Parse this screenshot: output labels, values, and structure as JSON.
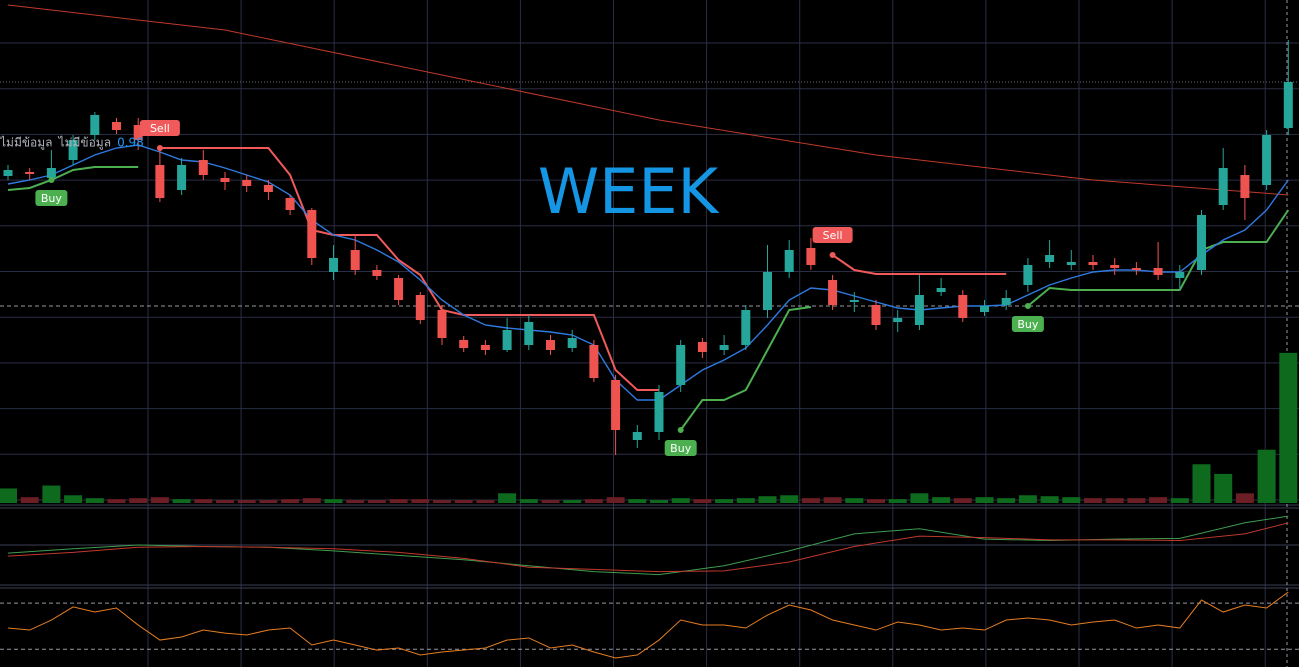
{
  "chart_data": {
    "type": "candlestick",
    "title": "WEEK",
    "status": [
      "ไม่มีข้อมูล",
      "ไม่มีข้อมูล",
      "0.98"
    ],
    "status_colors": [
      "#b2b5be",
      "#b2b5be",
      "#2196f3"
    ],
    "up_color": "#26a69a",
    "down_color": "#ef5350",
    "grid": true,
    "ylim": [
      0,
      100
    ],
    "open": [
      64.8,
      65.6,
      64.4,
      68,
      73,
      75.6,
      75,
      67,
      62,
      68,
      64.4,
      64,
      63,
      60.4,
      58,
      45.6,
      50,
      46,
      44.4,
      41,
      38,
      32,
      31,
      30,
      31,
      32,
      30.4,
      31,
      24,
      12,
      13.6,
      23,
      31.6,
      30,
      31,
      38,
      45.6,
      50.4,
      44,
      39.6,
      39,
      35.6,
      35,
      41.6,
      41,
      37.6,
      39,
      43,
      47.6,
      47,
      47.6,
      47,
      46.4,
      46.4,
      44.4,
      46,
      59,
      65,
      63,
      74.4
    ],
    "high": [
      67,
      66.4,
      70,
      73,
      77.6,
      76.4,
      76.4,
      70.4,
      68.4,
      70,
      65.6,
      65,
      64,
      61,
      58.4,
      51,
      53,
      47,
      45,
      41.6,
      39,
      32.8,
      32,
      36.4,
      37,
      33,
      34,
      32,
      25,
      15,
      23,
      32,
      32.4,
      33,
      39,
      51,
      52,
      52.4,
      45,
      41.6,
      40,
      38,
      45,
      44.4,
      42,
      40,
      42,
      48.4,
      52,
      50,
      49,
      48.4,
      47.6,
      51.6,
      47,
      58,
      70.4,
      67,
      74,
      92
    ],
    "low": [
      64,
      64,
      63.6,
      67,
      72,
      73.2,
      70,
      59.6,
      61,
      64,
      62,
      61.6,
      60,
      57,
      47,
      44,
      45,
      44,
      39,
      35.2,
      31,
      29.6,
      29,
      29.6,
      30,
      29,
      29.6,
      23.6,
      9,
      10.4,
      12,
      21.6,
      28.4,
      29,
      30,
      36.4,
      44.4,
      46,
      38,
      37.6,
      34,
      33.6,
      34,
      40.8,
      35.6,
      36.8,
      38,
      41.6,
      46.4,
      46,
      46,
      45,
      45,
      44,
      42,
      45,
      58,
      56,
      62,
      73
    ],
    "close": [
      66,
      65.2,
      66.4,
      72,
      77,
      74,
      72,
      60.4,
      67,
      65,
      63.6,
      62.8,
      61.6,
      58,
      48.4,
      48.4,
      46,
      44.8,
      40,
      36,
      32.4,
      30.4,
      30,
      34,
      35.6,
      30,
      32.4,
      24.4,
      14,
      13.6,
      21.6,
      31,
      29.6,
      31,
      38,
      45.6,
      50,
      47,
      39,
      40,
      35,
      36.4,
      41,
      42.4,
      36.4,
      38.8,
      40.4,
      47,
      49,
      47.6,
      47,
      46.4,
      46,
      45,
      45.6,
      57,
      66.4,
      60.4,
      73,
      83.6
    ],
    "volume": {
      "ylim": [
        0,
        160
      ],
      "values": [
        15,
        6,
        18,
        8,
        5,
        4,
        5,
        6,
        4,
        4,
        3,
        3,
        3,
        4,
        5,
        4,
        3,
        3,
        4,
        4,
        3,
        3,
        3,
        10,
        4,
        3,
        3,
        4,
        6,
        4,
        3,
        5,
        4,
        4,
        5,
        7,
        8,
        5,
        6,
        5,
        4,
        4,
        10,
        6,
        5,
        6,
        5,
        8,
        7,
        6,
        5,
        5,
        5,
        6,
        5,
        40,
        30,
        10,
        55,
        155
      ]
    },
    "trend_upper": {
      "color": "#f05a5a",
      "values": [
        null,
        null,
        null,
        null,
        null,
        null,
        null,
        70.4,
        70.4,
        70.4,
        70.4,
        70.4,
        70.4,
        65,
        54,
        53,
        53,
        53,
        48,
        45,
        38,
        37,
        37,
        37,
        37,
        37,
        37,
        37,
        26,
        22,
        22,
        null,
        null,
        null,
        null,
        null,
        null,
        null,
        49,
        46,
        45.2,
        45.2,
        45.2,
        45.2,
        45.2,
        45.2,
        45.2,
        null,
        null,
        null,
        null,
        null,
        null,
        null,
        null,
        null,
        null,
        null,
        null,
        null
      ]
    },
    "trend_lower": {
      "color": "#4caf50",
      "values": [
        62,
        62.4,
        64,
        66,
        66.6,
        66.6,
        66.6,
        null,
        null,
        null,
        null,
        null,
        null,
        null,
        null,
        null,
        null,
        null,
        null,
        null,
        null,
        null,
        null,
        null,
        null,
        null,
        null,
        null,
        null,
        null,
        null,
        14,
        20,
        20,
        22,
        30,
        38,
        38.6,
        null,
        null,
        null,
        null,
        null,
        null,
        null,
        null,
        null,
        38.8,
        42.4,
        42,
        42,
        42,
        42,
        42,
        42,
        50,
        51.6,
        51.6,
        51.6,
        58
      ]
    },
    "ma": {
      "color": "#2f7ae0",
      "values": [
        63.2,
        64,
        65,
        67,
        69,
        70.4,
        71,
        69.6,
        68,
        67.6,
        66.4,
        65,
        63.6,
        61,
        56,
        53,
        52,
        50,
        47.6,
        44,
        40,
        37,
        35,
        34.4,
        34,
        33.6,
        33,
        31,
        24,
        20,
        20,
        23,
        26,
        28,
        30.4,
        35,
        40,
        42.4,
        42,
        40.8,
        39.6,
        38.4,
        38,
        38.4,
        38.8,
        38.8,
        39,
        41,
        43,
        44.4,
        45.6,
        46,
        46,
        45.6,
        45.6,
        49,
        52,
        54,
        58,
        64
      ]
    },
    "long_ma": {
      "color": "#c0392b",
      "x": [
        0,
        10,
        20,
        30,
        40,
        50,
        59
      ],
      "values": [
        99,
        94,
        85,
        76,
        69,
        64,
        61
      ]
    },
    "price_lines": [
      83.6,
      38.8
    ],
    "signals": [
      {
        "text": "Buy",
        "index": 2
      },
      {
        "text": "Sell",
        "index": 7
      },
      {
        "text": "Buy",
        "index": 31
      },
      {
        "text": "Sell",
        "index": 38
      },
      {
        "text": "Buy",
        "index": 47
      }
    ],
    "oscillator": {
      "ylim": [
        0,
        100
      ],
      "series": [
        {
          "color": "#3f9c4f",
          "x": [
            0,
            3,
            6,
            9,
            12,
            15,
            18,
            21,
            24,
            27,
            30,
            33,
            36,
            39,
            42,
            45,
            48,
            51,
            54,
            57,
            59
          ],
          "values": [
            39,
            45,
            50,
            48,
            47,
            42,
            36,
            30,
            22,
            14,
            10,
            22,
            42,
            65,
            72,
            58,
            56,
            58,
            59,
            80,
            89
          ]
        },
        {
          "color": "#c0392b",
          "x": [
            0,
            3,
            6,
            9,
            12,
            15,
            18,
            21,
            24,
            27,
            30,
            33,
            36,
            39,
            42,
            45,
            48,
            51,
            54,
            57,
            59
          ],
          "values": [
            35,
            40,
            47,
            48,
            47,
            45,
            40,
            32,
            20,
            17,
            14,
            15,
            27,
            48,
            62,
            60,
            57,
            57,
            56,
            65,
            80
          ]
        }
      ]
    },
    "rsi": {
      "ylim": [
        0,
        100
      ],
      "levels": [
        83,
        23
      ],
      "color": "#e67e22",
      "values": [
        50.6,
        48,
        61,
        78,
        71.4,
        76.6,
        54.5,
        35,
        39,
        48,
        44,
        41.6,
        48,
        50.6,
        28.6,
        35,
        28.6,
        22,
        24.7,
        15.6,
        19.5,
        22,
        24.7,
        35,
        37.7,
        24.7,
        28.6,
        19.5,
        11.7,
        15.6,
        35,
        61,
        54.5,
        54.5,
        50.6,
        67.5,
        80.5,
        74,
        61,
        54.5,
        48,
        58.4,
        54.5,
        48,
        50.6,
        48,
        61,
        63.6,
        61,
        54.5,
        58.4,
        61,
        50.6,
        54.5,
        50.6,
        87,
        71.4,
        80.5,
        76.6,
        97.4
      ]
    }
  }
}
